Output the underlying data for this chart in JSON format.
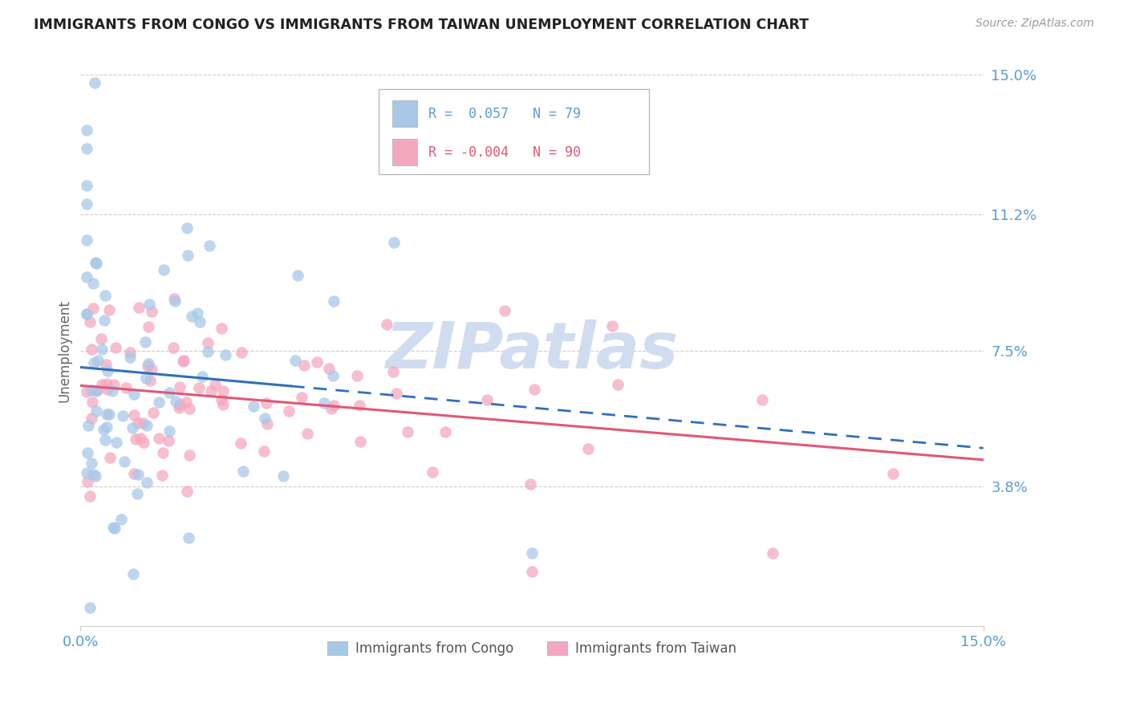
{
  "title": "IMMIGRANTS FROM CONGO VS IMMIGRANTS FROM TAIWAN UNEMPLOYMENT CORRELATION CHART",
  "source": "Source: ZipAtlas.com",
  "ylabel": "Unemployment",
  "xlim": [
    0.0,
    0.15
  ],
  "ylim": [
    0.0,
    0.15
  ],
  "yticks": [
    0.038,
    0.075,
    0.112,
    0.15
  ],
  "ytick_labels": [
    "3.8%",
    "7.5%",
    "11.2%",
    "15.0%"
  ],
  "xtick_labels": [
    "0.0%",
    "15.0%"
  ],
  "congo_R": 0.057,
  "congo_N": 79,
  "taiwan_R": -0.004,
  "taiwan_N": 90,
  "congo_color": "#A8C8E8",
  "taiwan_color": "#F4A8C0",
  "congo_line_color": "#3070B8",
  "taiwan_line_color": "#E05878",
  "legend_label_congo": "Immigrants from Congo",
  "legend_label_taiwan": "Immigrants from Taiwan",
  "background_color": "#FFFFFF",
  "grid_color": "#CCCCCC",
  "title_color": "#222222",
  "axis_label_color": "#666666",
  "tick_label_color": "#5B9BD5",
  "watermark_text": "ZIPatlas",
  "watermark_color": "#D0DCF0"
}
